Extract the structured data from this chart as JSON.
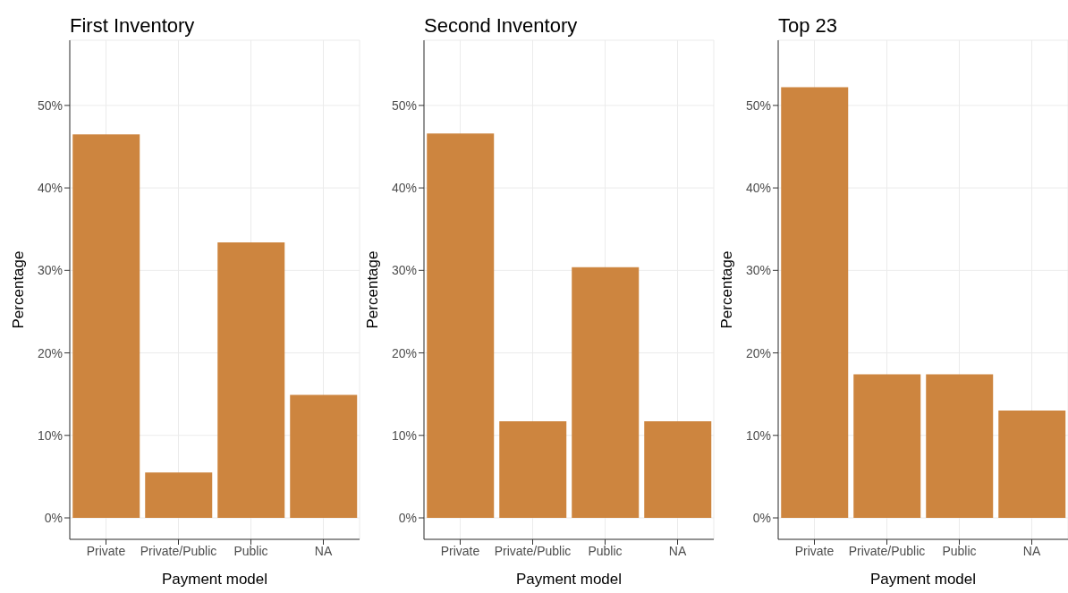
{
  "chart_data": [
    {
      "type": "bar",
      "title": "First Inventory",
      "xlabel": "Payment model",
      "ylabel": "Percentage",
      "categories": [
        "Private",
        "Private/Public",
        "Public",
        "NA"
      ],
      "values": [
        46.5,
        5.5,
        33.4,
        14.9
      ],
      "color": "#cd853f",
      "ylim": [
        -2.6,
        57.9
      ],
      "yticks": [
        {
          "value": 0,
          "label": "0%"
        },
        {
          "value": 10,
          "label": "10%"
        },
        {
          "value": 20,
          "label": "20%"
        },
        {
          "value": 30,
          "label": "30%"
        },
        {
          "value": 40,
          "label": "40%"
        },
        {
          "value": 50,
          "label": "50%"
        }
      ],
      "grid": true,
      "legend": false
    },
    {
      "type": "bar",
      "title": "Second Inventory",
      "xlabel": "Payment model",
      "ylabel": "Percentage",
      "categories": [
        "Private",
        "Private/Public",
        "Public",
        "NA"
      ],
      "values": [
        46.6,
        11.7,
        30.4,
        11.7
      ],
      "color": "#cd853f",
      "ylim": [
        -2.6,
        57.9
      ],
      "yticks": [
        {
          "value": 0,
          "label": "0%"
        },
        {
          "value": 10,
          "label": "10%"
        },
        {
          "value": 20,
          "label": "20%"
        },
        {
          "value": 30,
          "label": "30%"
        },
        {
          "value": 40,
          "label": "40%"
        },
        {
          "value": 50,
          "label": "50%"
        }
      ],
      "grid": true,
      "legend": false
    },
    {
      "type": "bar",
      "title": "Top 23",
      "xlabel": "Payment model",
      "ylabel": "Percentage",
      "categories": [
        "Private",
        "Private/Public",
        "Public",
        "NA"
      ],
      "values": [
        52.2,
        17.4,
        17.4,
        13.0
      ],
      "color": "#cd853f",
      "ylim": [
        -2.6,
        57.9
      ],
      "yticks": [
        {
          "value": 0,
          "label": "0%"
        },
        {
          "value": 10,
          "label": "10%"
        },
        {
          "value": 20,
          "label": "20%"
        },
        {
          "value": 30,
          "label": "30%"
        },
        {
          "value": 40,
          "label": "40%"
        },
        {
          "value": 50,
          "label": "50%"
        }
      ],
      "grid": true,
      "legend": false
    }
  ]
}
